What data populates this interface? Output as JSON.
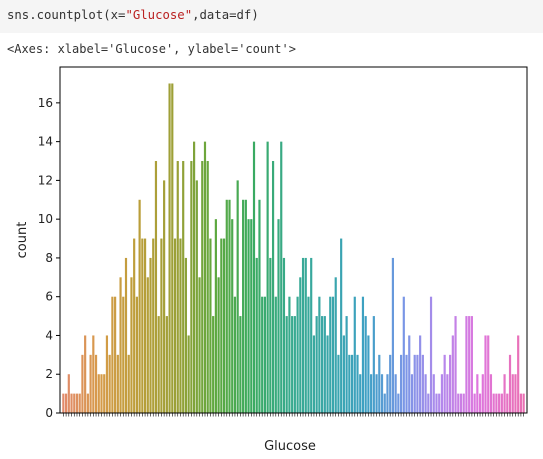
{
  "cell": {
    "code_prefix": "sns.countplot(x=",
    "code_string": "\"Glucose\"",
    "code_suffix": ",data=df)"
  },
  "output": {
    "repr": "<Axes: xlabel='Glucose', ylabel='count'>"
  },
  "chart_data": {
    "type": "bar",
    "xlabel": "Glucose",
    "ylabel": "count",
    "ylim": [
      0,
      17.85
    ],
    "yticks": [
      0,
      2,
      4,
      6,
      8,
      10,
      12,
      14,
      16
    ],
    "grid": false,
    "legend": "none",
    "categories_note": "x tick labels are the distinct Glucose values; they overlap and are illegible in the original",
    "values": [
      1,
      1,
      2,
      1,
      1,
      1,
      1,
      3,
      4,
      1,
      3,
      4,
      3,
      2,
      2,
      2,
      4,
      3,
      6,
      6,
      3,
      7,
      6,
      8,
      3,
      7,
      9,
      6,
      11,
      9,
      9,
      7,
      8,
      9,
      13,
      5,
      9,
      12,
      5,
      17,
      17,
      9,
      13,
      9,
      13,
      8,
      4,
      13,
      14,
      12,
      7,
      13,
      14,
      13,
      9,
      5,
      10,
      7,
      9,
      9,
      11,
      11,
      10,
      6,
      12,
      5,
      11,
      11,
      10,
      10,
      14,
      8,
      11,
      6,
      6,
      14,
      8,
      13,
      6,
      10,
      14,
      8,
      5,
      6,
      5,
      5,
      6,
      7,
      8,
      8,
      6,
      8,
      4,
      5,
      6,
      5,
      5,
      4,
      6,
      6,
      7,
      3,
      9,
      4,
      5,
      3,
      3,
      6,
      3,
      2,
      6,
      5,
      4,
      2,
      5,
      2,
      3,
      2,
      1,
      2,
      3,
      8,
      2,
      1,
      3,
      6,
      3,
      4,
      2,
      3,
      3,
      4,
      3,
      2,
      1,
      6,
      2,
      1,
      1,
      2,
      3,
      2,
      3,
      4,
      5,
      1,
      1,
      1,
      5,
      5,
      5,
      1,
      2,
      1,
      2,
      4,
      4,
      2,
      1,
      1,
      1,
      1,
      2,
      1,
      3,
      2,
      2,
      4,
      1,
      1
    ]
  }
}
